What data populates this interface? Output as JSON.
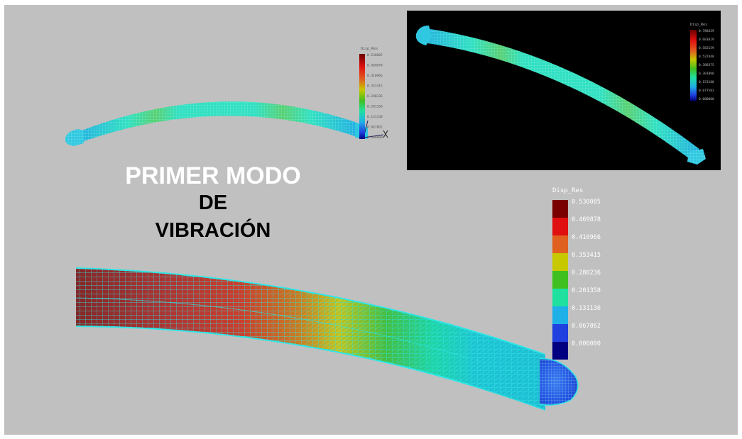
{
  "title": {
    "line1": "PRIMER MODO",
    "line2": "DE",
    "line3": "VIBRACIÓN"
  },
  "legend_large": {
    "header": "Disp_Res",
    "values": [
      "0.530085",
      "0.469878",
      "0.410966",
      "0.353415",
      "0.280236",
      "0.201358",
      "0.131130",
      "0.067862",
      "0.000000"
    ],
    "colors": [
      "#7a0000",
      "#e01010",
      "#e06020",
      "#c8c800",
      "#40c020",
      "#20e0a0",
      "#20b0e8",
      "#2040e0",
      "#000080"
    ]
  },
  "legend_small_top_left": {
    "header": "Disp_Res",
    "values": [
      "0.530085",
      "0.469878",
      "0.410966",
      "0.353415",
      "0.280236",
      "0.201358",
      "0.131130",
      "0.067862",
      "0.000000"
    ]
  },
  "legend_small_top_right": {
    "header": "Disp_Res",
    "values": [
      "0.788439",
      "0.681019",
      "0.582159",
      "0.522448",
      "0.388375",
      "0.301898",
      "0.153188",
      "0.077583",
      "0.000000"
    ]
  },
  "colors": {
    "background": "#c0c0c0",
    "panel": "#000000",
    "mesh_cyan": "#2ee6e6",
    "title_white": "#ffffff"
  }
}
